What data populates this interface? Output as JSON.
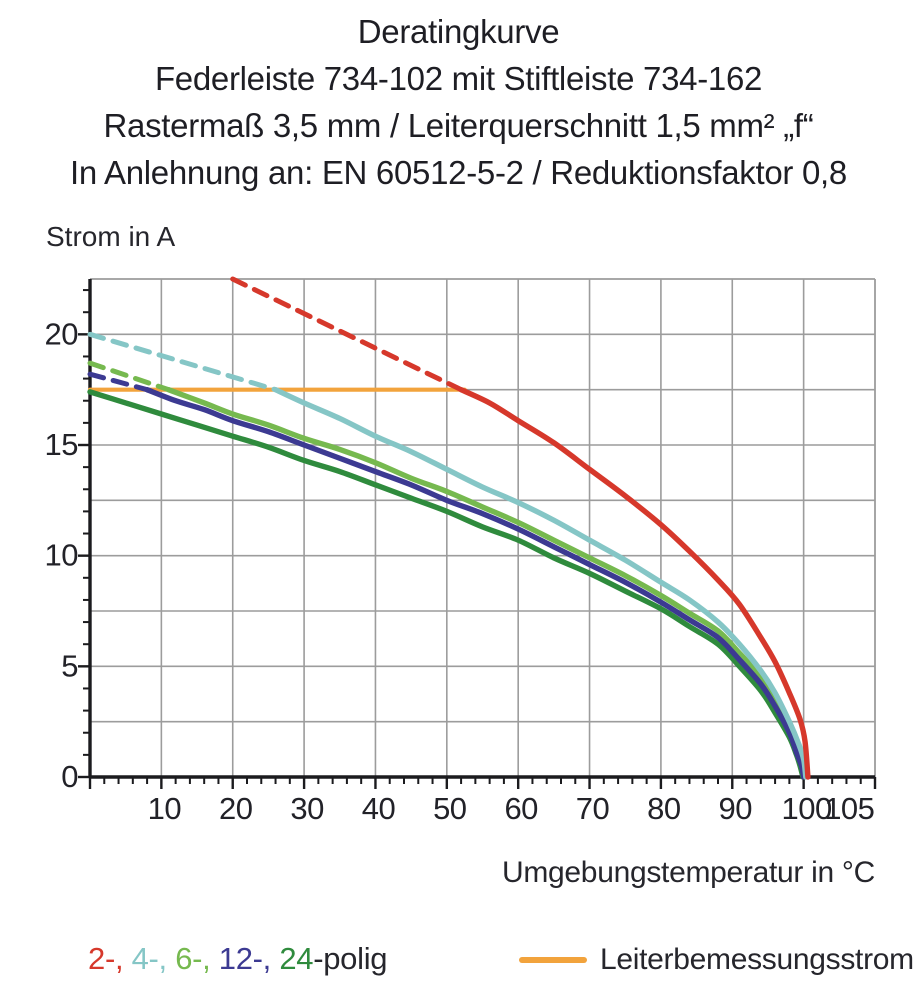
{
  "title": {
    "line1": "Deratingkurve",
    "line2": "Federleiste 734-102 mit Stiftleiste 734-162",
    "line3": "Rastermaß 3,5 mm / Leiterquerschnitt 1,5 mm² „f“",
    "line4": "In Anlehnung an: EN 60512-5-2 / Reduktionsfaktor 0,8"
  },
  "chart": {
    "y_axis_label": "Strom in A",
    "x_axis_label": "Umgebungstemperatur in °C"
  },
  "legend": {
    "poles": [
      {
        "label": "2-, ",
        "color": "#d6382b"
      },
      {
        "label": "4-, ",
        "color": "#85c6c6"
      },
      {
        "label": "6-, ",
        "color": "#76b94f"
      },
      {
        "label": "12-, ",
        "color": "#3c3a92"
      },
      {
        "label": "24",
        "color": "#2f8b3d"
      },
      {
        "label": "-polig",
        "color": "#26262c"
      }
    ],
    "rated_current_label": "Leiterbemessungsstrom",
    "rated_current_color": "#f2a33c"
  },
  "chart_data": {
    "type": "line",
    "title": "Deratingkurve",
    "xlabel": "Umgebungstemperatur in °C",
    "ylabel": "Strom in A",
    "xlim": [
      0,
      110
    ],
    "ylim": [
      0,
      22.5
    ],
    "grid": {
      "x_gridlines": [
        10,
        20,
        30,
        40,
        50,
        60,
        70,
        80,
        90,
        100
      ],
      "y_gridlines": [
        2.5,
        5,
        7.5,
        10,
        12.5,
        15,
        17.5,
        20
      ],
      "x_minor_tick_step": 2,
      "y_minor_tick_step": 1,
      "color": "#9c9c9c"
    },
    "x_tick_labels": [
      10,
      20,
      30,
      40,
      50,
      60,
      70,
      80,
      90,
      100,
      105
    ],
    "y_tick_labels": [
      0,
      5,
      10,
      15,
      20
    ],
    "rated_current": {
      "label": "Leiterbemessungsstrom",
      "value": 17.5,
      "x_start": 0,
      "x_end": 52.5,
      "color": "#f2a33c"
    },
    "series": [
      {
        "name": "24-polig",
        "color": "#2f8b3d",
        "dashed": [],
        "solid": [
          [
            0,
            17.4
          ],
          [
            5,
            16.9
          ],
          [
            10,
            16.4
          ],
          [
            15,
            15.9
          ],
          [
            20,
            15.4
          ],
          [
            25,
            14.9
          ],
          [
            30,
            14.3
          ],
          [
            35,
            13.8
          ],
          [
            40,
            13.2
          ],
          [
            45,
            12.6
          ],
          [
            50,
            12.0
          ],
          [
            55,
            11.3
          ],
          [
            60,
            10.7
          ],
          [
            65,
            9.9
          ],
          [
            70,
            9.2
          ],
          [
            75,
            8.4
          ],
          [
            80,
            7.6
          ],
          [
            84,
            6.8
          ],
          [
            88,
            6.0
          ],
          [
            91,
            5.0
          ],
          [
            94,
            3.9
          ],
          [
            96,
            2.9
          ],
          [
            98,
            1.8
          ],
          [
            99,
            1.0
          ],
          [
            99.5,
            0.5
          ],
          [
            99.9,
            0
          ]
        ]
      },
      {
        "name": "6-polig",
        "color": "#76b94f",
        "dashed": [
          [
            0,
            18.7
          ],
          [
            11,
            17.5
          ]
        ],
        "solid": [
          [
            11,
            17.5
          ],
          [
            16,
            16.9
          ],
          [
            20,
            16.4
          ],
          [
            25,
            15.9
          ],
          [
            30,
            15.3
          ],
          [
            35,
            14.8
          ],
          [
            40,
            14.2
          ],
          [
            45,
            13.5
          ],
          [
            50,
            12.9
          ],
          [
            55,
            12.2
          ],
          [
            60,
            11.5
          ],
          [
            65,
            10.7
          ],
          [
            70,
            9.9
          ],
          [
            75,
            9.1
          ],
          [
            80,
            8.2
          ],
          [
            84,
            7.4
          ],
          [
            88,
            6.6
          ],
          [
            91,
            5.6
          ],
          [
            94,
            4.5
          ],
          [
            96,
            3.5
          ],
          [
            98,
            2.2
          ],
          [
            99.2,
            1.2
          ],
          [
            99.8,
            0.6
          ],
          [
            100.1,
            0
          ]
        ]
      },
      {
        "name": "12-polig",
        "color": "#3c3a92",
        "dashed": [
          [
            0,
            18.2
          ],
          [
            8,
            17.5
          ]
        ],
        "solid": [
          [
            8,
            17.5
          ],
          [
            12,
            17.0
          ],
          [
            16,
            16.6
          ],
          [
            20,
            16.1
          ],
          [
            25,
            15.6
          ],
          [
            30,
            15.0
          ],
          [
            35,
            14.4
          ],
          [
            40,
            13.8
          ],
          [
            45,
            13.2
          ],
          [
            50,
            12.5
          ],
          [
            55,
            11.9
          ],
          [
            60,
            11.2
          ],
          [
            65,
            10.4
          ],
          [
            70,
            9.6
          ],
          [
            75,
            8.8
          ],
          [
            80,
            7.9
          ],
          [
            84,
            7.1
          ],
          [
            88,
            6.3
          ],
          [
            91,
            5.3
          ],
          [
            94,
            4.2
          ],
          [
            96,
            3.2
          ],
          [
            98,
            2.0
          ],
          [
            99,
            1.1
          ],
          [
            99.7,
            0.5
          ],
          [
            100,
            0
          ]
        ]
      },
      {
        "name": "4-polig",
        "color": "#85c6c6",
        "dashed": [
          [
            0,
            20
          ],
          [
            26,
            17.5
          ]
        ],
        "solid": [
          [
            26,
            17.5
          ],
          [
            30,
            16.9
          ],
          [
            35,
            16.2
          ],
          [
            40,
            15.4
          ],
          [
            45,
            14.7
          ],
          [
            50,
            13.9
          ],
          [
            55,
            13.1
          ],
          [
            60,
            12.4
          ],
          [
            65,
            11.6
          ],
          [
            70,
            10.7
          ],
          [
            75,
            9.8
          ],
          [
            80,
            8.8
          ],
          [
            84,
            8.0
          ],
          [
            88,
            7.0
          ],
          [
            91,
            6.0
          ],
          [
            94,
            4.8
          ],
          [
            96,
            3.8
          ],
          [
            98,
            2.5
          ],
          [
            99.3,
            1.5
          ],
          [
            100,
            0.8
          ],
          [
            100.3,
            0
          ]
        ]
      },
      {
        "name": "2-polig",
        "color": "#d6382b",
        "dashed": [
          [
            20,
            22.5
          ],
          [
            52,
            17.5
          ]
        ],
        "solid": [
          [
            52,
            17.5
          ],
          [
            56,
            16.9
          ],
          [
            60,
            16.1
          ],
          [
            65,
            15.1
          ],
          [
            70,
            13.9
          ],
          [
            75,
            12.7
          ],
          [
            80,
            11.4
          ],
          [
            84,
            10.2
          ],
          [
            88,
            8.9
          ],
          [
            91,
            7.8
          ],
          [
            94,
            6.3
          ],
          [
            96,
            5.2
          ],
          [
            98,
            3.8
          ],
          [
            99.5,
            2.6
          ],
          [
            100.2,
            1.6
          ],
          [
            100.6,
            0
          ]
        ]
      }
    ]
  }
}
